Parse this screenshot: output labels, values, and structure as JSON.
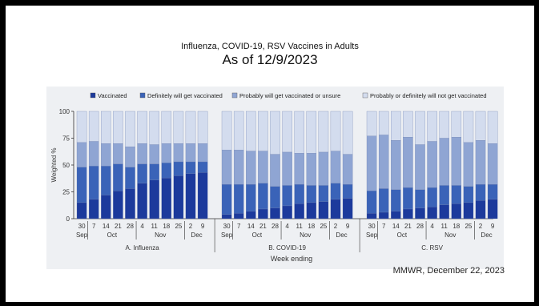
{
  "slide": {
    "title_line1": "Influenza, COVID-19, RSV Vaccines in Adults",
    "title_line2": "As of 12/9/2023",
    "source": "MMWR, December 22, 2023"
  },
  "colors": {
    "vaccinated": "#1c3a9c",
    "definitely": "#3a63b8",
    "probably": "#8fa5d3",
    "will_not": "#d3dcee",
    "panel_bg": "#eef0f3",
    "axis": "#333333"
  },
  "chart_data": {
    "type": "bar",
    "stacked": true,
    "ylabel": "Weighted %",
    "xlabel": "Week ending",
    "ylim": [
      0,
      100
    ],
    "yticks": [
      0,
      25,
      50,
      75,
      100
    ],
    "legend_position": "top",
    "legend": [
      "Vaccinated",
      "Definitely will get vaccinated",
      "Probably will get vaccinated or unsure",
      "Probably or definitely will not get vaccinated"
    ],
    "day_ticks": [
      "30",
      "7",
      "14",
      "21",
      "28",
      "4",
      "11",
      "18",
      "25",
      "2",
      "9"
    ],
    "month_labels": [
      {
        "label": "Sep",
        "start": 0,
        "end": 0
      },
      {
        "label": "Oct",
        "start": 1,
        "end": 4
      },
      {
        "label": "Nov",
        "start": 5,
        "end": 8
      },
      {
        "label": "Dec",
        "start": 9,
        "end": 10
      }
    ],
    "panels": [
      {
        "label": "A. Influenza",
        "vaccinated": [
          15,
          18,
          22,
          26,
          28,
          33,
          36,
          38,
          40,
          42,
          43
        ],
        "definitely": [
          33,
          31,
          27,
          25,
          20,
          18,
          15,
          14,
          13,
          11,
          10
        ],
        "probably": [
          23,
          23,
          21,
          19,
          19,
          19,
          18,
          18,
          17,
          17,
          17
        ]
      },
      {
        "label": "B. COVID-19",
        "vaccinated": [
          4,
          5,
          7,
          9,
          10,
          12,
          14,
          15,
          16,
          18,
          19
        ],
        "definitely": [
          28,
          27,
          25,
          24,
          20,
          19,
          18,
          16,
          15,
          15,
          13
        ],
        "probably": [
          32,
          32,
          31,
          30,
          30,
          31,
          29,
          30,
          31,
          30,
          28
        ]
      },
      {
        "label": "C. RSV",
        "vaccinated": [
          5,
          6,
          7,
          9,
          10,
          11,
          13,
          14,
          15,
          17,
          18
        ],
        "definitely": [
          21,
          22,
          20,
          20,
          17,
          18,
          18,
          17,
          15,
          15,
          14
        ],
        "probably": [
          51,
          50,
          46,
          47,
          42,
          43,
          44,
          45,
          41,
          41,
          38
        ]
      }
    ]
  }
}
